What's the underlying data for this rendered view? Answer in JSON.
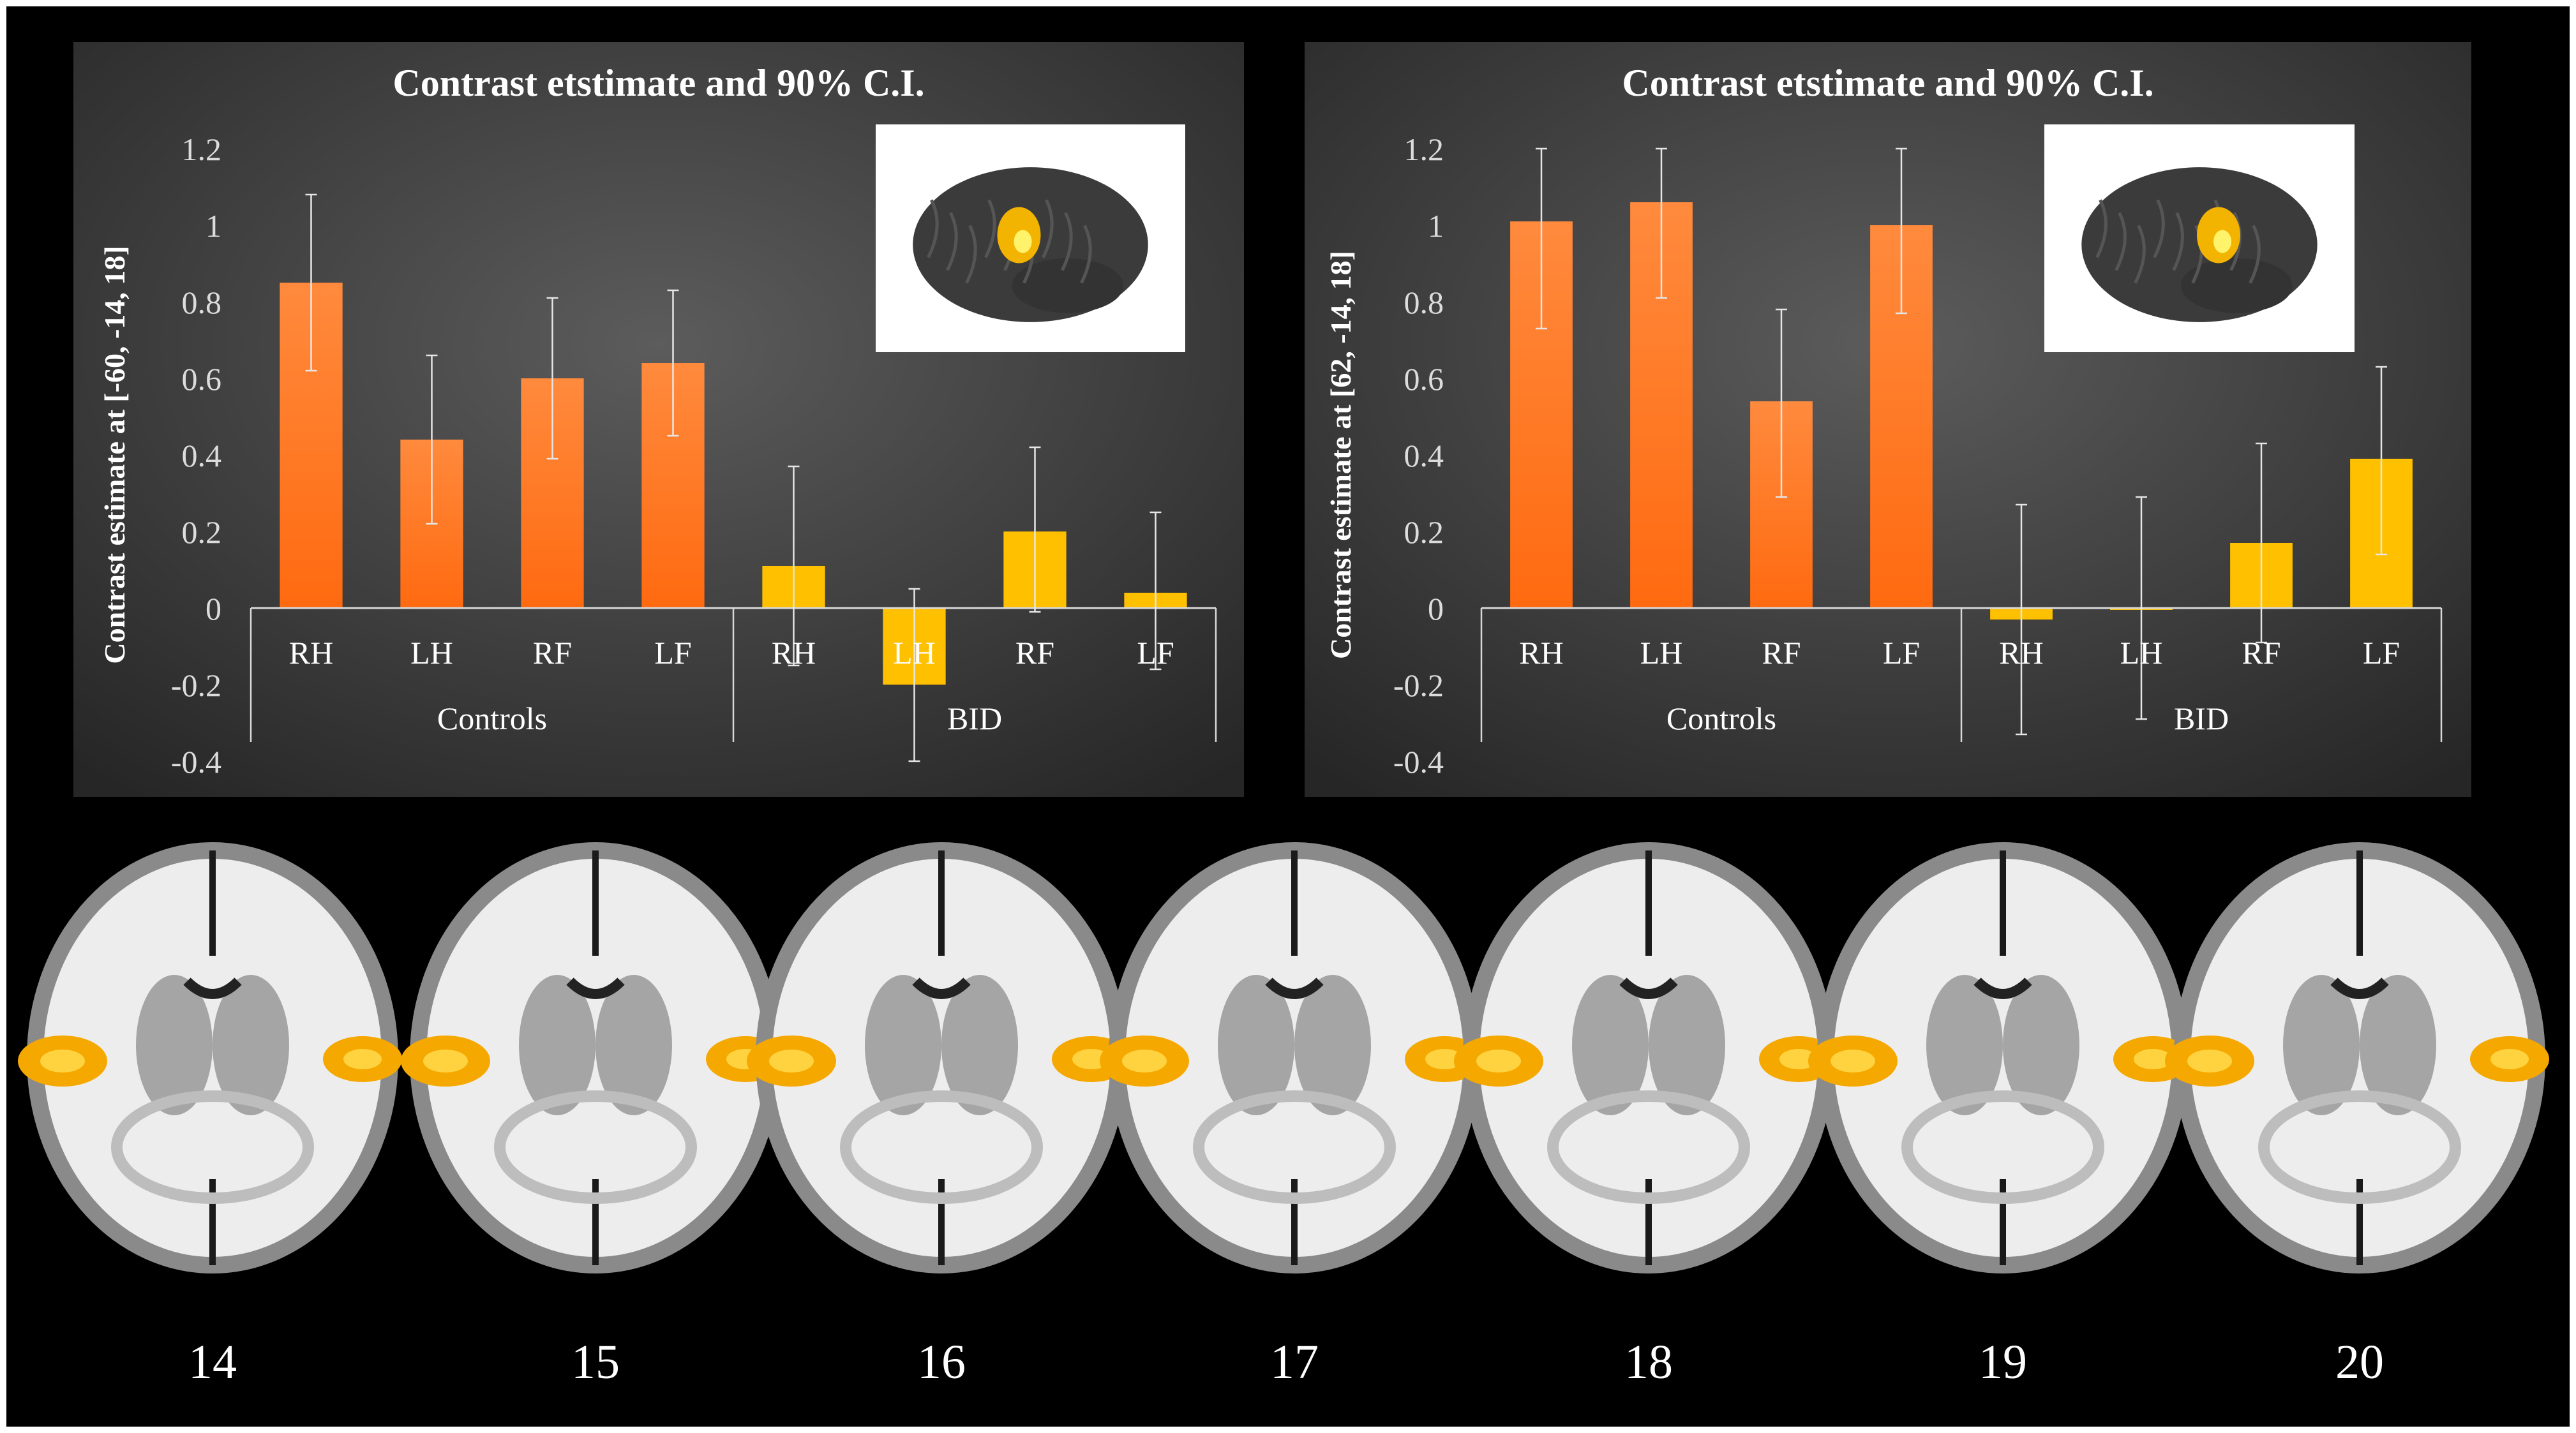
{
  "chart_data": [
    {
      "type": "bar",
      "title": "Contrast etstimate and 90% C.I.",
      "ylabel": "Contrast estimate at [-60, -14, 18]",
      "ylim": [
        -0.4,
        1.2
      ],
      "yticks": [
        "-0.4",
        "-0.2",
        "0",
        "0.2",
        "0.4",
        "0.6",
        "0.8",
        "1",
        "1.2"
      ],
      "groups": [
        "Controls",
        "BID"
      ],
      "categories": [
        "RH",
        "LH",
        "RF",
        "LF",
        "RH",
        "LH",
        "RF",
        "LF"
      ],
      "values": [
        0.85,
        0.44,
        0.6,
        0.64,
        0.11,
        -0.2,
        0.2,
        0.04
      ],
      "ci_low": [
        0.62,
        0.22,
        0.39,
        0.45,
        -0.15,
        -0.4,
        -0.01,
        -0.16
      ],
      "ci_high": [
        1.08,
        0.66,
        0.81,
        0.83,
        0.37,
        0.05,
        0.42,
        0.25
      ],
      "colors": [
        "#ff7722",
        "#ff7722",
        "#ff7722",
        "#ff7722",
        "#ffc000",
        "#ffc000",
        "#ffc000",
        "#ffc000"
      ],
      "grid": false,
      "inset": "brain-surface-render-left"
    },
    {
      "type": "bar",
      "title": "Contrast etstimate and 90% C.I.",
      "ylabel": "Contrast estimate at [62, -14, 18]",
      "ylim": [
        -0.4,
        1.2
      ],
      "yticks": [
        "-0.4",
        "-0.2",
        "0",
        "0.2",
        "0.4",
        "0.6",
        "0.8",
        "1",
        "1.2"
      ],
      "groups": [
        "Controls",
        "BID"
      ],
      "categories": [
        "RH",
        "LH",
        "RF",
        "LF",
        "RH",
        "LH",
        "RF",
        "LF"
      ],
      "values": [
        1.01,
        1.06,
        0.54,
        1.0,
        -0.03,
        0.0,
        0.17,
        0.39
      ],
      "ci_low": [
        0.73,
        0.81,
        0.29,
        0.77,
        -0.33,
        -0.29,
        -0.09,
        0.14
      ],
      "ci_high": [
        1.2,
        1.2,
        0.78,
        1.2,
        0.27,
        0.29,
        0.43,
        0.63
      ],
      "colors": [
        "#ff7722",
        "#ff7722",
        "#ff7722",
        "#ff7722",
        "#ffc000",
        "#ffc000",
        "#ffc000",
        "#ffc000"
      ],
      "grid": false,
      "inset": "brain-surface-render-right"
    }
  ],
  "slices": {
    "labels": [
      "14",
      "15",
      "16",
      "17",
      "18",
      "19",
      "20"
    ]
  }
}
